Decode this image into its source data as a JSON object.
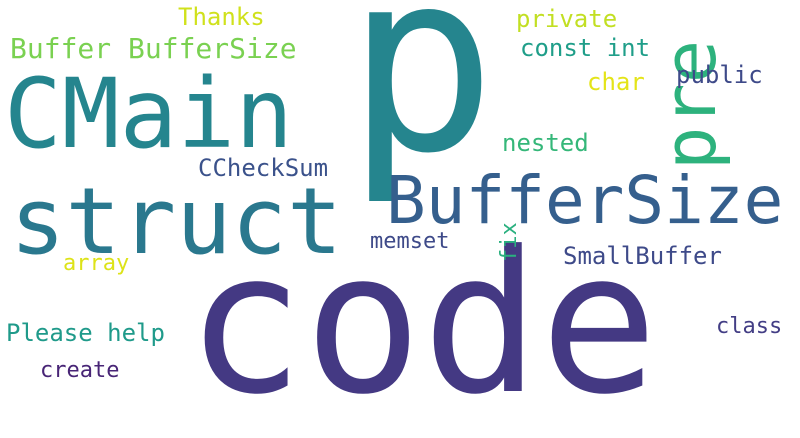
{
  "words": {
    "p": {
      "text": "p",
      "color": "#25858e"
    },
    "code": {
      "text": "code",
      "color": "#443983"
    },
    "cmain": {
      "text": "CMain",
      "color": "#25858e"
    },
    "struct": {
      "text": "struct",
      "color": "#2a788e"
    },
    "buffersize": {
      "text": "BufferSize",
      "color": "#355f8d"
    },
    "pre": {
      "text": "pre",
      "color": "#2db27d"
    },
    "buffer_buffersize": {
      "text": "Buffer BufferSize",
      "color": "#7ad151"
    },
    "thanks": {
      "text": "Thanks",
      "color": "#d0e11c"
    },
    "private": {
      "text": "private",
      "color": "#c2df23"
    },
    "const_int": {
      "text": "const int",
      "color": "#1f9e89"
    },
    "char": {
      "text": "char",
      "color": "#e4e419"
    },
    "public": {
      "text": "public",
      "color": "#3e4a89"
    },
    "nested": {
      "text": "nested",
      "color": "#35b779"
    },
    "ccheckcum": {
      "text": "CCheckSum",
      "color": "#3b528b"
    },
    "memset": {
      "text": "memset",
      "color": "#3e4a89"
    },
    "fix": {
      "text": "fix",
      "color": "#2ab07f"
    },
    "smallbuffer": {
      "text": "SmallBuffer",
      "color": "#3e4a89"
    },
    "array": {
      "text": "array",
      "color": "#dde318"
    },
    "please_help": {
      "text": "Please help",
      "color": "#1f9a8a"
    },
    "class": {
      "text": "class",
      "color": "#433e85"
    },
    "create": {
      "text": "create",
      "color": "#482576"
    }
  }
}
